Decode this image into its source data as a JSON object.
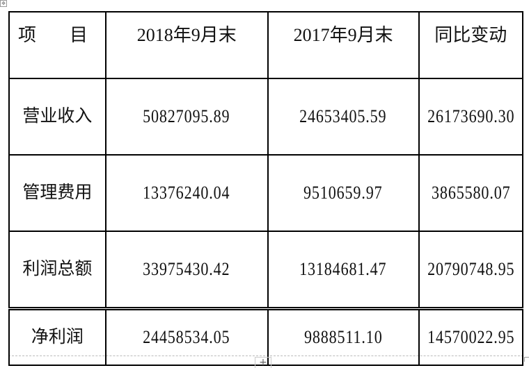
{
  "table": {
    "headers": [
      "项",
      "目",
      "2018年9月末",
      "2017年9月末",
      "同比变动"
    ],
    "rows": [
      {
        "item": "营业收入",
        "y2018": "50827095.89",
        "y2017": "24653405.59",
        "change": "26173690.30"
      },
      {
        "item": "管理费用",
        "y2018": "13376240.04",
        "y2017": "9510659.97",
        "change": "3865580.07"
      },
      {
        "item": "利润总额",
        "y2018": "33975430.42",
        "y2017": "13184681.47",
        "change": "20790748.95"
      },
      {
        "item": "净利润",
        "y2018": "24458534.05",
        "y2017": "9888511.10",
        "change": "14570022.95"
      }
    ]
  },
  "controls": {
    "table_move_icon": "move-icon",
    "add_row_label": "+"
  }
}
